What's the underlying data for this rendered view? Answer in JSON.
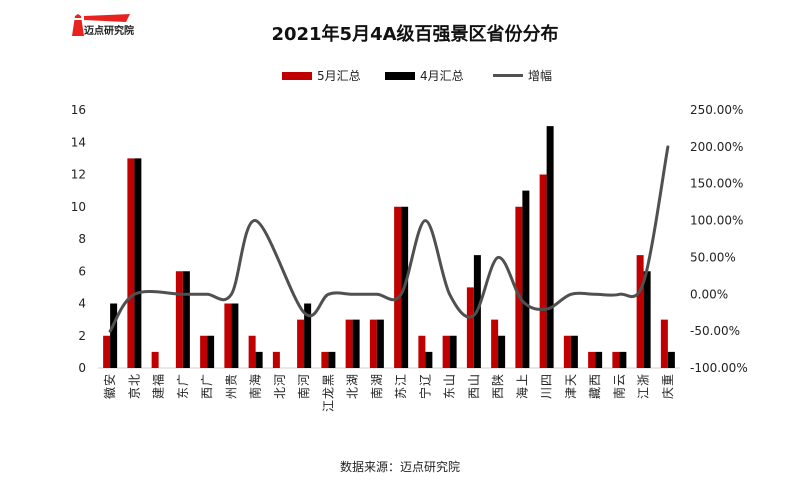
{
  "logo": {
    "text": "迈点研究院"
  },
  "source": "数据来源：迈点研究院",
  "colors": {
    "may": "#c00000",
    "april": "#000000",
    "growth": "#505050"
  },
  "chart_data": {
    "type": "bar",
    "title": "2021年5月4A级百强景区省份分布",
    "legend": [
      "5月汇总",
      "4月汇总",
      "增幅"
    ],
    "legend_position": "top",
    "categories": [
      "安徽",
      "北京",
      "福建",
      "广东",
      "广西",
      "贵州",
      "海南",
      "河北",
      "河南",
      "黑龙江",
      "湖北",
      "湖南",
      "江苏",
      "辽宁",
      "山东",
      "山西",
      "陕西",
      "上海",
      "四川",
      "天津",
      "西藏",
      "云南",
      "浙江",
      "重庆"
    ],
    "series": [
      {
        "name": "5月汇总",
        "type": "bar",
        "axis": "left",
        "values": [
          2,
          13,
          1,
          6,
          2,
          4,
          2,
          1,
          3,
          1,
          3,
          3,
          10,
          2,
          2,
          5,
          3,
          10,
          12,
          2,
          1,
          1,
          7,
          3
        ]
      },
      {
        "name": "4月汇总",
        "type": "bar",
        "axis": "left",
        "values": [
          4,
          13,
          0,
          6,
          2,
          4,
          1,
          0,
          4,
          1,
          3,
          3,
          10,
          1,
          2,
          7,
          2,
          11,
          15,
          2,
          1,
          1,
          6,
          1
        ]
      },
      {
        "name": "增幅",
        "type": "line",
        "axis": "right",
        "values": [
          -50,
          0,
          null,
          0,
          0,
          0,
          100,
          null,
          -25,
          0,
          0,
          0,
          0,
          100,
          0,
          -28.57,
          50,
          -9.09,
          -20,
          0,
          0,
          0,
          16.67,
          200
        ]
      }
    ],
    "ylim": [
      0,
      16
    ],
    "yticks": [
      "0",
      "2",
      "4",
      "6",
      "8",
      "10",
      "12",
      "14",
      "16"
    ],
    "y2lim": [
      -100,
      250
    ],
    "y2ticks": [
      "-100.00%",
      "-50.00%",
      "0.00%",
      "50.00%",
      "100.00%",
      "150.00%",
      "200.00%",
      "250.00%"
    ],
    "grid": false
  }
}
